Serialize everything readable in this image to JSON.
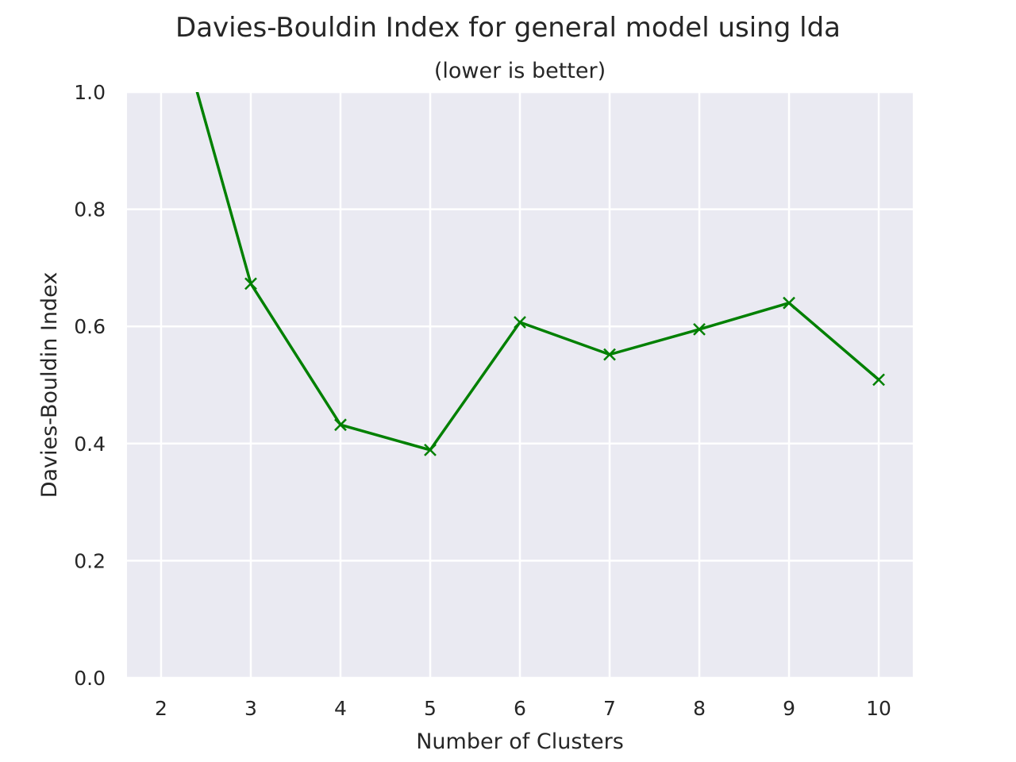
{
  "chart_data": {
    "type": "line",
    "title": "Davies-Bouldin Index for general model using lda",
    "subtitle": "(lower is better)",
    "xlabel": "Number of Clusters",
    "ylabel": "Davies-Bouldin Index",
    "x": [
      2,
      3,
      4,
      5,
      6,
      7,
      8,
      9,
      10
    ],
    "series": [
      {
        "values": [
          1.22,
          0.673,
          0.432,
          0.389,
          0.607,
          0.552,
          0.595,
          0.64,
          0.509
        ]
      }
    ],
    "xlim": [
      1.62,
      10.38
    ],
    "ylim": [
      0.0,
      1.0
    ],
    "xticks": [
      "2",
      "3",
      "4",
      "5",
      "6",
      "7",
      "8",
      "9",
      "10"
    ],
    "yticks": [
      "0.0",
      "0.2",
      "0.4",
      "0.6",
      "0.8",
      "1.0"
    ],
    "ytick_values": [
      0.0,
      0.2,
      0.4,
      0.6,
      0.8,
      1.0
    ],
    "marker": "x",
    "grid": true,
    "colors": {
      "line": "#008000",
      "plot_bg": "#eaeaf2",
      "grid": "#ffffff"
    }
  }
}
